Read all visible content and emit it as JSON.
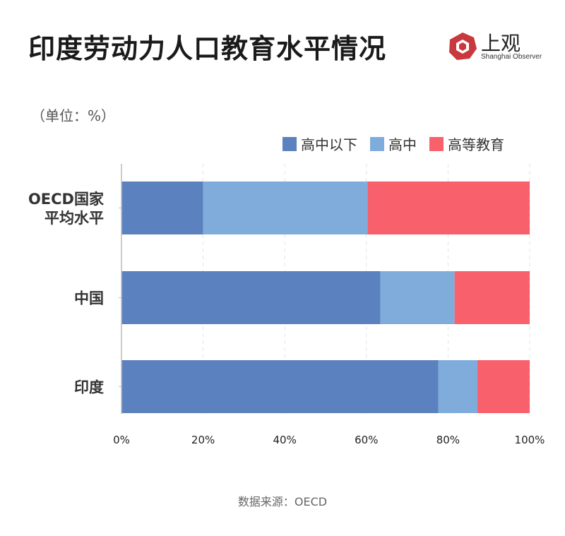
{
  "header": {
    "title": "印度劳动力人口教育水平情况",
    "logo_cn": "上观",
    "logo_en": "Shanghai Observer"
  },
  "unit_note": "（单位：%）",
  "source": "数据来源：OECD",
  "colors": {
    "below_high_school": "#5b82be",
    "high_school": "#80acdc",
    "higher_education": "#f8616c",
    "logo_red": "#c8383d"
  },
  "chart_data": {
    "type": "bar",
    "orientation": "horizontal",
    "stacked": true,
    "categories": [
      "OECD国家平均水平",
      "中国",
      "印度"
    ],
    "category_label_lines": [
      [
        "OECD国家",
        "平均水平"
      ],
      [
        "中国"
      ],
      [
        "印度"
      ]
    ],
    "series": [
      {
        "name": "高中以下",
        "values": [
          20,
          63.4,
          77.6
        ]
      },
      {
        "name": "高中",
        "values": [
          40.3,
          18.2,
          9.6
        ]
      },
      {
        "name": "高等教育",
        "values": [
          39.7,
          18.4,
          12.8
        ]
      }
    ],
    "xlim": [
      0,
      100
    ],
    "xticks": [
      0,
      20,
      40,
      60,
      80,
      100
    ],
    "xtick_labels": [
      "0%",
      "20%",
      "40%",
      "60%",
      "80%",
      "100%"
    ],
    "grid": "vertical dashed",
    "legend_position": "top-right"
  }
}
